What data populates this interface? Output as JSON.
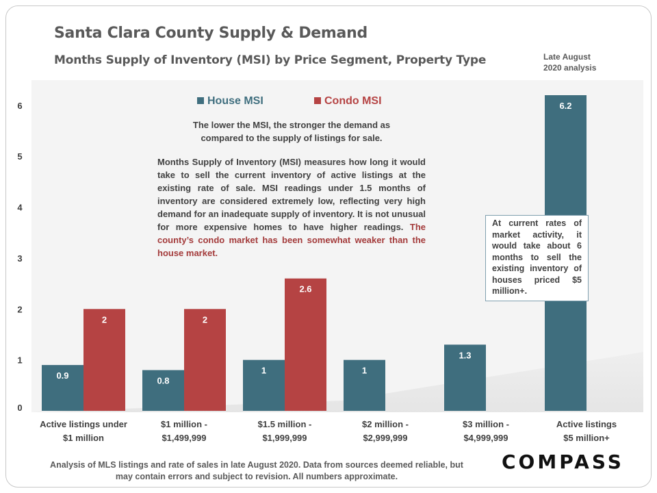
{
  "title": "Santa Clara County Supply & Demand",
  "subtitle": "Months Supply of Inventory (MSI) by Price Segment, Property Type",
  "corner_note": [
    "Late August",
    "2020 analysis"
  ],
  "description_short": "The lower the MSI, the stronger the demand as compared to the supply of listings for sale.",
  "description_long": {
    "bold_lead": "Months Supply of Inventory (MSI)",
    "body": " measures how long it would take to sell the current inventory of active listings at the existing rate of sale. MSI readings under 1.5 months of inventory are considered extremely low, reflecting very high demand for an inadequate supply of inventory. It is not unusual for more expensive homes to have higher readings. ",
    "red_text": "The county’s condo market has been somewhat weaker than the house market."
  },
  "callout": "At current rates of market activity, it would take about 6 months to sell the existing inventory of houses priced $5 million+.",
  "footnote": "Analysis of MLS listings and rate of sales in late August 2020. Data from sources deemed reliable, but may contain errors and subject to revision. All numbers approximate.",
  "logo": "COMPASS",
  "colors": {
    "house": "#3f6e7e",
    "condo": "#b54343",
    "plot_bg": "#f4f4f4"
  },
  "chart_data": {
    "type": "bar",
    "categories": [
      [
        "Active listings under",
        "$1 million"
      ],
      [
        "$1 million -",
        "$1,499,999"
      ],
      [
        "$1.5 million -",
        "$1,999,999"
      ],
      [
        "$2 million -",
        "$2,999,999"
      ],
      [
        "$3 million -",
        "$4,999,999"
      ],
      [
        "Active listings",
        "$5 million+"
      ]
    ],
    "series": [
      {
        "name": "House MSI",
        "values": [
          0.9,
          0.8,
          1,
          1,
          1.3,
          6.2
        ],
        "labels": [
          "0.9",
          "0.8",
          "1",
          "1",
          "1.3",
          "6.2"
        ]
      },
      {
        "name": "Condo MSI",
        "values": [
          2,
          2,
          2.6,
          null,
          null,
          null
        ],
        "labels": [
          "2",
          "2",
          "2.6",
          "",
          "",
          ""
        ]
      }
    ],
    "y_ticks": [
      0,
      1,
      2,
      3,
      4,
      5,
      6
    ],
    "ylim": [
      0,
      6.2
    ],
    "grid": false,
    "legend_position": "top-center"
  }
}
